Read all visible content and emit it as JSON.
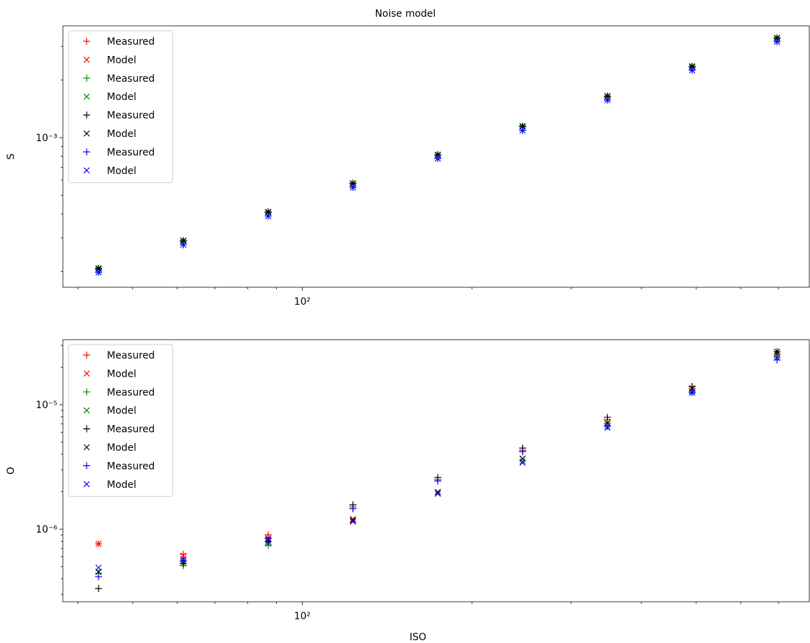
{
  "chart_data": [
    {
      "type": "scatter",
      "title": "Noise model",
      "ylabel": "S",
      "xlog": true,
      "ylog": true,
      "minor_ticks": true,
      "legend": "upper left",
      "x": [
        43.5,
        61.5,
        87,
        123,
        174,
        246,
        348,
        492,
        696
      ],
      "xlim": [
        37.6,
        794
      ],
      "xticks": [
        {
          "value": 100,
          "label": "10²"
        }
      ],
      "ylim": [
        0.0001656,
        0.003837
      ],
      "yticks": [
        {
          "value": 0.001,
          "label": "10⁻³"
        }
      ],
      "series": [
        {
          "name": "Measured",
          "color": "#ff0000",
          "marker": "+",
          "values": [
            0.000206,
            0.000288,
            0.000407,
            0.000574,
            0.000811,
            0.00114,
            0.00164,
            0.00234,
            0.0033
          ]
        },
        {
          "name": "Model",
          "color": "#ff0000",
          "marker": "x",
          "values": [
            0.000206,
            0.000288,
            0.000407,
            0.000574,
            0.000811,
            0.00114,
            0.00164,
            0.00234,
            0.0033
          ]
        },
        {
          "name": "Measured",
          "color": "#008000",
          "marker": "+",
          "values": [
            0.000206,
            0.000288,
            0.000407,
            0.000574,
            0.000811,
            0.00114,
            0.00164,
            0.00234,
            0.0033
          ]
        },
        {
          "name": "Model",
          "color": "#008000",
          "marker": "x",
          "values": [
            0.000206,
            0.000288,
            0.000407,
            0.000574,
            0.000811,
            0.00114,
            0.00164,
            0.00234,
            0.0033
          ]
        },
        {
          "name": "Measured",
          "color": "#000000",
          "marker": "+",
          "values": [
            0.000208,
            0.00029,
            0.00041,
            0.000578,
            0.000815,
            0.00115,
            0.00165,
            0.00236,
            0.00332
          ]
        },
        {
          "name": "Model",
          "color": "#000000",
          "marker": "x",
          "values": [
            0.000208,
            0.00029,
            0.00041,
            0.000578,
            0.000815,
            0.00115,
            0.00165,
            0.00236,
            0.00332
          ]
        },
        {
          "name": "Measured",
          "color": "#0000ff",
          "marker": "+",
          "values": [
            0.000198,
            0.000276,
            0.00039,
            0.00055,
            0.000778,
            0.00109,
            0.00157,
            0.00225,
            0.00317
          ]
        },
        {
          "name": "Model",
          "color": "#0000ff",
          "marker": "x",
          "values": [
            0.000198,
            0.000276,
            0.00039,
            0.00055,
            0.000778,
            0.00109,
            0.00157,
            0.00225,
            0.00317
          ]
        }
      ]
    },
    {
      "type": "scatter",
      "ylabel": "O",
      "xlabel": "ISO",
      "xlog": true,
      "ylog": true,
      "minor_ticks": true,
      "legend": "upper left",
      "x": [
        43.5,
        61.5,
        87,
        123,
        174,
        246,
        348,
        492,
        696
      ],
      "xlim": [
        37.6,
        794
      ],
      "xticks": [
        {
          "value": 100,
          "label": "10²"
        }
      ],
      "ylim": [
        2.61e-07,
        3.33e-05
      ],
      "yticks": [
        {
          "value": 1e-06,
          "label": "10⁻⁶"
        },
        {
          "value": 1e-05,
          "label": "10⁻⁵"
        }
      ],
      "series": [
        {
          "name": "Measured",
          "color": "#ff0000",
          "marker": "+",
          "values": [
            7.62e-07,
            6.28e-07,
            9.02e-07,
            1.51e-06,
            2.5e-06,
            4.31e-06,
            7.62e-06,
            1.35e-05,
            2.54e-05
          ]
        },
        {
          "name": "Model",
          "color": "#ff0000",
          "marker": "x",
          "values": [
            7.62e-07,
            6.12e-07,
            8.45e-07,
            1.21e-06,
            1.99e-06,
            3.69e-06,
            7.14e-06,
            1.35e-05,
            2.54e-05
          ]
        },
        {
          "name": "Measured",
          "color": "#008000",
          "marker": "+",
          "values": [
            4.43e-07,
            5.1e-07,
            7.43e-07,
            1.46e-06,
            2.44e-06,
            4.2e-06,
            7.14e-06,
            1.28e-05,
            2.38e-05
          ]
        },
        {
          "name": "Model",
          "color": "#008000",
          "marker": "x",
          "values": [
            4.54e-07,
            5.31e-07,
            7.62e-07,
            1.18e-06,
            1.93e-06,
            3.51e-06,
            6.7e-06,
            1.28e-05,
            2.54e-05
          ]
        },
        {
          "name": "Measured",
          "color": "#000000",
          "marker": "+",
          "values": [
            3.33e-07,
            5.31e-07,
            7.93e-07,
            1.57e-06,
            2.6e-06,
            4.48e-06,
            7.92e-06,
            1.4e-05,
            2.67e-05
          ]
        },
        {
          "name": "Model",
          "color": "#000000",
          "marker": "x",
          "values": [
            4.54e-07,
            5.52e-07,
            8.24e-07,
            1.18e-06,
            1.99e-06,
            3.69e-06,
            7.14e-06,
            1.35e-05,
            2.67e-05
          ]
        },
        {
          "name": "Measured",
          "color": "#0000ff",
          "marker": "+",
          "values": [
            4.15e-07,
            5.59e-07,
            8.45e-07,
            1.46e-06,
            2.44e-06,
            4.2e-06,
            6.7e-06,
            1.25e-05,
            2.29e-05
          ]
        },
        {
          "name": "Model",
          "color": "#0000ff",
          "marker": "x",
          "values": [
            4.91e-07,
            5.74e-07,
            7.93e-07,
            1.15e-06,
            1.93e-06,
            3.42e-06,
            6.53e-06,
            1.25e-05,
            2.38e-05
          ]
        }
      ]
    }
  ]
}
